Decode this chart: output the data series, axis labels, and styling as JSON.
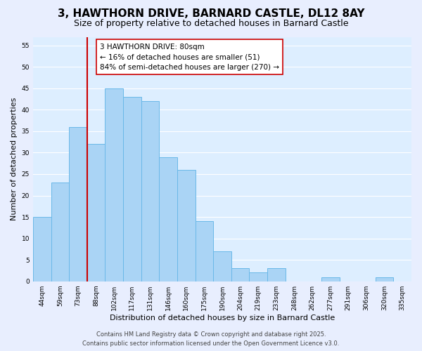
{
  "title": "3, HAWTHORN DRIVE, BARNARD CASTLE, DL12 8AY",
  "subtitle": "Size of property relative to detached houses in Barnard Castle",
  "xlabel": "Distribution of detached houses by size in Barnard Castle",
  "ylabel": "Number of detached properties",
  "bar_labels": [
    "44sqm",
    "59sqm",
    "73sqm",
    "88sqm",
    "102sqm",
    "117sqm",
    "131sqm",
    "146sqm",
    "160sqm",
    "175sqm",
    "190sqm",
    "204sqm",
    "219sqm",
    "233sqm",
    "248sqm",
    "262sqm",
    "277sqm",
    "291sqm",
    "306sqm",
    "320sqm",
    "335sqm"
  ],
  "bar_values": [
    15,
    23,
    36,
    32,
    45,
    43,
    42,
    29,
    26,
    14,
    7,
    3,
    2,
    3,
    0,
    0,
    1,
    0,
    0,
    1,
    0
  ],
  "bar_color": "#aad4f5",
  "bar_edge_color": "#6ab8e8",
  "vline_color": "#cc0000",
  "vline_index": 2,
  "ylim": [
    0,
    57
  ],
  "yticks": [
    0,
    5,
    10,
    15,
    20,
    25,
    30,
    35,
    40,
    45,
    50,
    55
  ],
  "annotation_line1": "3 HAWTHORN DRIVE: 80sqm",
  "annotation_line2": "← 16% of detached houses are smaller (51)",
  "annotation_line3": "84% of semi-detached houses are larger (270) →",
  "annotation_box_color": "#ffffff",
  "annotation_box_edge": "#cc0000",
  "footer_line1": "Contains HM Land Registry data © Crown copyright and database right 2025.",
  "footer_line2": "Contains public sector information licensed under the Open Government Licence v3.0.",
  "bg_color": "#e8eefe",
  "plot_bg_color": "#ddeeff",
  "grid_color": "#ffffff",
  "title_fontsize": 11,
  "subtitle_fontsize": 9,
  "annotation_fontsize": 7.5,
  "footer_fontsize": 6,
  "tick_fontsize": 6.5,
  "axis_label_fontsize": 8
}
